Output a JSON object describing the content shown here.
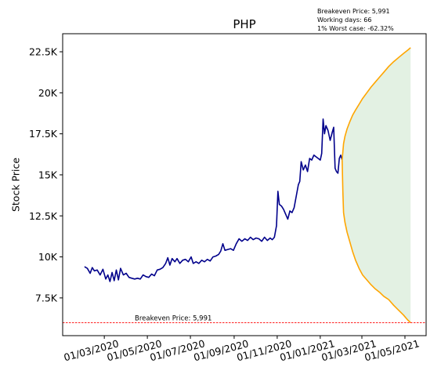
{
  "chart_data": {
    "type": "line",
    "title": "PHP",
    "xlabel": "",
    "ylabel": "Stock Price",
    "ylim": [
      5200,
      23600
    ],
    "y_ticks": [
      {
        "value": 7500,
        "label": "7.5K"
      },
      {
        "value": 10000,
        "label": "10K"
      },
      {
        "value": 12500,
        "label": "12.5K"
      },
      {
        "value": 15000,
        "label": "15K"
      },
      {
        "value": 17500,
        "label": "17.5K"
      },
      {
        "value": 20000,
        "label": "20K"
      },
      {
        "value": 22500,
        "label": "22.5K"
      }
    ],
    "x_range": [
      "2020-01-02",
      "2021-05-31"
    ],
    "x_ticks": [
      {
        "date": "2020-03-01",
        "label": "01/03/2020"
      },
      {
        "date": "2020-05-01",
        "label": "01/05/2020"
      },
      {
        "date": "2020-07-01",
        "label": "01/07/2020"
      },
      {
        "date": "2020-09-01",
        "label": "01/09/2020"
      },
      {
        "date": "2020-11-01",
        "label": "01/11/2020"
      },
      {
        "date": "2021-01-01",
        "label": "01/01/2021"
      },
      {
        "date": "2021-03-01",
        "label": "01/03/2021"
      },
      {
        "date": "2021-05-01",
        "label": "01/05/2021"
      }
    ],
    "grid": false,
    "series": [
      {
        "color": "#00008b",
        "points": [
          [
            "2020-02-02",
            9400
          ],
          [
            "2020-02-06",
            9300
          ],
          [
            "2020-02-10",
            9000
          ],
          [
            "2020-02-13",
            9350
          ],
          [
            "2020-02-16",
            9150
          ],
          [
            "2020-02-20",
            9200
          ],
          [
            "2020-02-24",
            8900
          ],
          [
            "2020-02-28",
            9250
          ],
          [
            "2020-03-03",
            8650
          ],
          [
            "2020-03-06",
            8900
          ],
          [
            "2020-03-09",
            8500
          ],
          [
            "2020-03-12",
            9050
          ],
          [
            "2020-03-15",
            8550
          ],
          [
            "2020-03-18",
            9200
          ],
          [
            "2020-03-21",
            8600
          ],
          [
            "2020-03-24",
            9300
          ],
          [
            "2020-03-28",
            8900
          ],
          [
            "2020-04-01",
            9000
          ],
          [
            "2020-04-05",
            8750
          ],
          [
            "2020-04-09",
            8700
          ],
          [
            "2020-04-13",
            8650
          ],
          [
            "2020-04-17",
            8700
          ],
          [
            "2020-04-21",
            8650
          ],
          [
            "2020-04-25",
            8900
          ],
          [
            "2020-04-29",
            8800
          ],
          [
            "2020-05-03",
            8750
          ],
          [
            "2020-05-07",
            8950
          ],
          [
            "2020-05-11",
            8850
          ],
          [
            "2020-05-15",
            9200
          ],
          [
            "2020-05-19",
            9250
          ],
          [
            "2020-05-23",
            9350
          ],
          [
            "2020-05-27",
            9600
          ],
          [
            "2020-05-30",
            9950
          ],
          [
            "2020-06-02",
            9500
          ],
          [
            "2020-06-05",
            9900
          ],
          [
            "2020-06-09",
            9700
          ],
          [
            "2020-06-12",
            9900
          ],
          [
            "2020-06-16",
            9600
          ],
          [
            "2020-06-20",
            9800
          ],
          [
            "2020-06-24",
            9850
          ],
          [
            "2020-06-28",
            9700
          ],
          [
            "2020-07-02",
            10000
          ],
          [
            "2020-07-05",
            9600
          ],
          [
            "2020-07-09",
            9700
          ],
          [
            "2020-07-13",
            9600
          ],
          [
            "2020-07-17",
            9800
          ],
          [
            "2020-07-21",
            9700
          ],
          [
            "2020-07-25",
            9850
          ],
          [
            "2020-07-29",
            9750
          ],
          [
            "2020-08-02",
            10000
          ],
          [
            "2020-08-06",
            10050
          ],
          [
            "2020-08-10",
            10150
          ],
          [
            "2020-08-13",
            10350
          ],
          [
            "2020-08-16",
            10800
          ],
          [
            "2020-08-19",
            10400
          ],
          [
            "2020-08-23",
            10450
          ],
          [
            "2020-08-27",
            10500
          ],
          [
            "2020-08-31",
            10400
          ],
          [
            "2020-09-04",
            10800
          ],
          [
            "2020-09-08",
            11100
          ],
          [
            "2020-09-12",
            10950
          ],
          [
            "2020-09-16",
            11100
          ],
          [
            "2020-09-20",
            11000
          ],
          [
            "2020-09-24",
            11200
          ],
          [
            "2020-09-28",
            11050
          ],
          [
            "2020-10-02",
            11150
          ],
          [
            "2020-10-06",
            11100
          ],
          [
            "2020-10-10",
            10950
          ],
          [
            "2020-10-14",
            11200
          ],
          [
            "2020-10-18",
            11000
          ],
          [
            "2020-10-22",
            11150
          ],
          [
            "2020-10-25",
            11050
          ],
          [
            "2020-10-28",
            11200
          ],
          [
            "2020-10-31",
            11900
          ],
          [
            "2020-11-02",
            14000
          ],
          [
            "2020-11-04",
            13200
          ],
          [
            "2020-11-07",
            13100
          ],
          [
            "2020-11-10",
            12900
          ],
          [
            "2020-11-13",
            12600
          ],
          [
            "2020-11-16",
            12300
          ],
          [
            "2020-11-19",
            12800
          ],
          [
            "2020-11-22",
            12700
          ],
          [
            "2020-11-25",
            13000
          ],
          [
            "2020-11-28",
            13700
          ],
          [
            "2020-12-01",
            14400
          ],
          [
            "2020-12-03",
            14600
          ],
          [
            "2020-12-05",
            15800
          ],
          [
            "2020-12-08",
            15300
          ],
          [
            "2020-12-11",
            15600
          ],
          [
            "2020-12-14",
            15200
          ],
          [
            "2020-12-17",
            16000
          ],
          [
            "2020-12-20",
            15900
          ],
          [
            "2020-12-23",
            16200
          ],
          [
            "2020-12-26",
            16100
          ],
          [
            "2020-12-29",
            16000
          ],
          [
            "2021-01-01",
            15900
          ],
          [
            "2021-01-03",
            16300
          ],
          [
            "2021-01-05",
            18400
          ],
          [
            "2021-01-07",
            17500
          ],
          [
            "2021-01-09",
            18000
          ],
          [
            "2021-01-12",
            17700
          ],
          [
            "2021-01-15",
            17100
          ],
          [
            "2021-01-18",
            17600
          ],
          [
            "2021-01-20",
            17900
          ],
          [
            "2021-01-22",
            15400
          ],
          [
            "2021-01-24",
            15200
          ],
          [
            "2021-01-26",
            15100
          ],
          [
            "2021-01-28",
            16000
          ],
          [
            "2021-01-30",
            16200
          ],
          [
            "2021-02-01",
            15900
          ]
        ]
      },
      {
        "color": "#ffa500",
        "points": [
          [
            "2021-02-01",
            15900
          ],
          [
            "2021-02-03",
            16900
          ],
          [
            "2021-02-05",
            17350
          ],
          [
            "2021-02-08",
            17800
          ],
          [
            "2021-02-12",
            18250
          ],
          [
            "2021-02-16",
            18650
          ],
          [
            "2021-02-20",
            18950
          ],
          [
            "2021-02-25",
            19300
          ],
          [
            "2021-03-02",
            19650
          ],
          [
            "2021-03-08",
            20000
          ],
          [
            "2021-03-14",
            20350
          ],
          [
            "2021-03-20",
            20650
          ],
          [
            "2021-03-26",
            20950
          ],
          [
            "2021-04-01",
            21250
          ],
          [
            "2021-04-08",
            21600
          ],
          [
            "2021-04-15",
            21900
          ],
          [
            "2021-04-22",
            22150
          ],
          [
            "2021-04-29",
            22400
          ],
          [
            "2021-05-05",
            22600
          ],
          [
            "2021-05-09",
            22750
          ]
        ]
      },
      {
        "color": "#ffa500",
        "points": [
          [
            "2021-02-01",
            15900
          ],
          [
            "2021-02-02",
            14000
          ],
          [
            "2021-02-03",
            12700
          ],
          [
            "2021-02-05",
            12100
          ],
          [
            "2021-02-08",
            11500
          ],
          [
            "2021-02-12",
            10900
          ],
          [
            "2021-02-16",
            10300
          ],
          [
            "2021-02-20",
            9800
          ],
          [
            "2021-02-25",
            9300
          ],
          [
            "2021-03-02",
            8900
          ],
          [
            "2021-03-08",
            8600
          ],
          [
            "2021-03-14",
            8300
          ],
          [
            "2021-03-20",
            8050
          ],
          [
            "2021-03-26",
            7850
          ],
          [
            "2021-04-01",
            7600
          ],
          [
            "2021-04-08",
            7400
          ],
          [
            "2021-04-15",
            7050
          ],
          [
            "2021-04-22",
            6750
          ],
          [
            "2021-04-29",
            6450
          ],
          [
            "2021-05-05",
            6150
          ],
          [
            "2021-05-09",
            5991
          ]
        ]
      }
    ],
    "fill_between": {
      "color": "#d9ecd9",
      "opacity": 0.75
    },
    "breakeven": {
      "value": 5991,
      "color": "#ff0000",
      "label": "Breakeven Price: 5,991"
    },
    "info_box": [
      "Breakeven Price: 5,991",
      "Working days: 66",
      "1% Worst case: -62.32%"
    ]
  }
}
